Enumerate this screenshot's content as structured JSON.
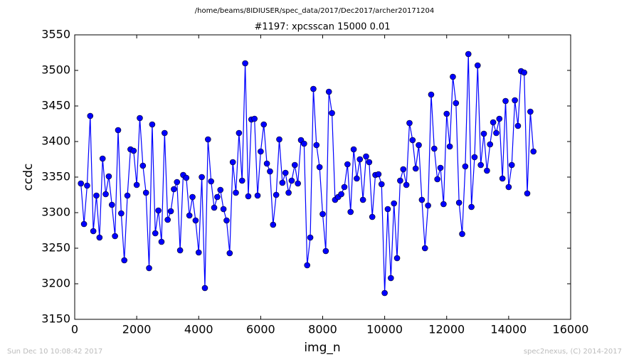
{
  "chart_data": {
    "type": "line",
    "suptitle": "/home/beams/8IDIUSER/spec_data/2017/Dec2017/archer20171204",
    "title": "#1197: xpcsscan 15000 0.01",
    "xlabel": "img_n",
    "ylabel": "ccdc",
    "footer_left": "Sun Dec 10 10:08:42 2017",
    "footer_right": "spec2nexus, (C) 2014-2017",
    "xlim": [
      0,
      16000
    ],
    "xticks": [
      0,
      2000,
      4000,
      6000,
      8000,
      10000,
      12000,
      14000,
      16000
    ],
    "ylim": [
      3150,
      3550
    ],
    "yticks": [
      3150,
      3200,
      3250,
      3300,
      3350,
      3400,
      3450,
      3500,
      3550
    ],
    "x": [
      200,
      300,
      400,
      500,
      600,
      700,
      800,
      900,
      1000,
      1100,
      1200,
      1300,
      1400,
      1500,
      1600,
      1700,
      1800,
      1900,
      2000,
      2100,
      2200,
      2300,
      2400,
      2500,
      2600,
      2700,
      2800,
      2900,
      3000,
      3100,
      3200,
      3300,
      3400,
      3500,
      3600,
      3700,
      3800,
      3900,
      4000,
      4100,
      4200,
      4300,
      4400,
      4500,
      4600,
      4700,
      4800,
      4900,
      5000,
      5100,
      5200,
      5300,
      5400,
      5500,
      5600,
      5700,
      5800,
      5900,
      6000,
      6100,
      6200,
      6300,
      6400,
      6500,
      6600,
      6700,
      6800,
      6900,
      7000,
      7100,
      7200,
      7300,
      7400,
      7500,
      7600,
      7700,
      7800,
      7900,
      8000,
      8100,
      8200,
      8300,
      8400,
      8500,
      8600,
      8700,
      8800,
      8900,
      9000,
      9100,
      9200,
      9300,
      9400,
      9500,
      9600,
      9700,
      9800,
      9900,
      10000,
      10100,
      10200,
      10300,
      10400,
      10500,
      10600,
      10700,
      10800,
      10900,
      11000,
      11100,
      11200,
      11300,
      11400,
      11500,
      11600,
      11700,
      11800,
      11900,
      12000,
      12100,
      12200,
      12300,
      12400,
      12500,
      12600,
      12700,
      12800,
      12900,
      13000,
      13100,
      13200,
      13300,
      13400,
      13500,
      13600,
      13700,
      13800,
      13900,
      14000,
      14100,
      14200,
      14300,
      14400,
      14500,
      14600,
      14700,
      14800
    ],
    "series": [
      {
        "color": "#0000ff",
        "values": [
          3341,
          3284,
          3338,
          3436,
          3274,
          3324,
          3265,
          3376,
          3326,
          3351,
          3311,
          3267,
          3416,
          3299,
          3233,
          3324,
          3389,
          3387,
          3339,
          3433,
          3366,
          3328,
          3222,
          3424,
          3271,
          3303,
          3259,
          3412,
          3290,
          3302,
          3333,
          3343,
          3247,
          3353,
          3349,
          3296,
          3322,
          3289,
          3244,
          3350,
          3194,
          3403,
          3344,
          3307,
          3322,
          3332,
          3305,
          3289,
          3243,
          3371,
          3328,
          3412,
          3345,
          3510,
          3323,
          3431,
          3432,
          3324,
          3386,
          3424,
          3369,
          3358,
          3283,
          3325,
          3403,
          3342,
          3356,
          3328,
          3345,
          3367,
          3341,
          3402,
          3397,
          3226,
          3265,
          3474,
          3395,
          3364,
          3298,
          3246,
          3470,
          3440,
          3318,
          3322,
          3326,
          3336,
          3368,
          3301,
          3389,
          3348,
          3375,
          3318,
          3379,
          3371,
          3294,
          3353,
          3354,
          3340,
          3187,
          3305,
          3208,
          3313,
          3236,
          3345,
          3361,
          3339,
          3426,
          3402,
          3362,
          3395,
          3318,
          3250,
          3310,
          3466,
          3390,
          3347,
          3363,
          3312,
          3439,
          3393,
          3491,
          3454,
          3314,
          3270,
          3365,
          3523,
          3308,
          3378,
          3507,
          3367,
          3411,
          3359,
          3396,
          3427,
          3412,
          3432,
          3348,
          3457,
          3336,
          3367,
          3458,
          3422,
          3499,
          3497,
          3327,
          3442,
          3386
        ]
      }
    ]
  }
}
